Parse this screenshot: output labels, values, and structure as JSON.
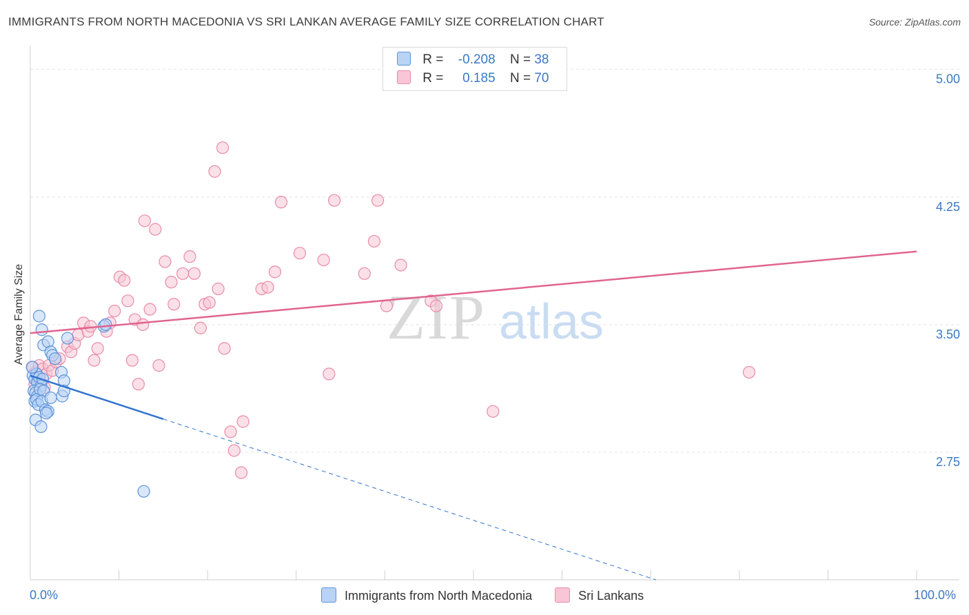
{
  "header": {
    "title": "IMMIGRANTS FROM NORTH MACEDONIA VS SRI LANKAN AVERAGE FAMILY SIZE CORRELATION CHART",
    "source": "Source: ZipAtlas.com"
  },
  "legend": {
    "r_label": "R =",
    "n_label": "N =",
    "rows": [
      {
        "r": "-0.208",
        "n": "38"
      },
      {
        "r": "0.185",
        "n": "70"
      }
    ]
  },
  "watermark": {
    "zip": "ZIP",
    "atlas": "atlas"
  },
  "colors": {
    "blue": "#5b93d8",
    "blue_fill": "#b9d3f5",
    "blue_line": "#3173cf",
    "pink": "#e98aa8",
    "pink_fill": "#f8c6d6",
    "pink_line": "#e0648f",
    "tick_text": "#3b78c4",
    "grid": "#e4e4e4"
  },
  "chart_data": {
    "type": "scatter",
    "title": "IMMIGRANTS FROM NORTH MACEDONIA VS SRI LANKAN AVERAGE FAMILY SIZE CORRELATION CHART",
    "xlabel": "",
    "ylabel": "Average Family Size",
    "xlim": [
      0,
      100
    ],
    "ylim": [
      2.0,
      5.1
    ],
    "yticks": [
      2.75,
      3.5,
      4.25,
      5.0
    ],
    "ytick_labels": [
      "2.75",
      "3.50",
      "4.25",
      "5.00"
    ],
    "xtick_labels": [
      "0.0%",
      "100.0%"
    ],
    "legend_position": "top-center",
    "series": [
      {
        "name": "Immigrants from North Macedonia",
        "color": "blue",
        "trend": {
          "x0": 0,
          "y0": 3.2,
          "x1": 100,
          "y1": 1.5,
          "solid_until": 15
        },
        "points": [
          [
            1.0,
            3.55
          ],
          [
            1.3,
            3.47
          ],
          [
            1.5,
            3.38
          ],
          [
            2.0,
            3.4
          ],
          [
            2.3,
            3.34
          ],
          [
            2.5,
            3.32
          ],
          [
            0.3,
            3.2
          ],
          [
            0.5,
            3.18
          ],
          [
            0.7,
            3.21
          ],
          [
            0.8,
            3.16
          ],
          [
            1.0,
            3.19
          ],
          [
            1.2,
            3.14
          ],
          [
            1.4,
            3.18
          ],
          [
            0.4,
            3.11
          ],
          [
            0.6,
            3.1
          ],
          [
            0.8,
            3.08
          ],
          [
            1.1,
            3.12
          ],
          [
            1.5,
            3.11
          ],
          [
            0.5,
            3.05
          ],
          [
            0.7,
            3.06
          ],
          [
            0.9,
            3.03
          ],
          [
            1.3,
            3.05
          ],
          [
            1.7,
            3.0
          ],
          [
            2.0,
            2.99
          ],
          [
            1.8,
            2.98
          ],
          [
            0.6,
            2.94
          ],
          [
            1.2,
            2.9
          ],
          [
            2.3,
            3.07
          ],
          [
            3.5,
            3.22
          ],
          [
            3.8,
            3.17
          ],
          [
            3.6,
            3.08
          ],
          [
            3.8,
            3.11
          ],
          [
            4.2,
            3.42
          ],
          [
            2.8,
            3.3
          ],
          [
            8.3,
            3.49
          ],
          [
            8.5,
            3.5
          ],
          [
            0.2,
            3.25
          ],
          [
            12.8,
            2.52
          ]
        ]
      },
      {
        "name": "Sri Lankans",
        "color": "pink",
        "trend": {
          "x0": 0,
          "y0": 3.45,
          "x1": 100,
          "y1": 3.93
        },
        "points": [
          [
            0.3,
            3.25
          ],
          [
            0.6,
            3.22
          ],
          [
            0.8,
            3.19
          ],
          [
            1.0,
            3.26
          ],
          [
            1.4,
            3.24
          ],
          [
            1.8,
            3.21
          ],
          [
            2.1,
            3.26
          ],
          [
            2.5,
            3.23
          ],
          [
            2.9,
            3.28
          ],
          [
            3.3,
            3.3
          ],
          [
            0.5,
            3.15
          ],
          [
            0.9,
            3.18
          ],
          [
            1.6,
            3.13
          ],
          [
            4.2,
            3.37
          ],
          [
            4.6,
            3.34
          ],
          [
            5.0,
            3.39
          ],
          [
            5.4,
            3.44
          ],
          [
            6.0,
            3.51
          ],
          [
            6.5,
            3.46
          ],
          [
            6.8,
            3.49
          ],
          [
            7.2,
            3.29
          ],
          [
            7.6,
            3.36
          ],
          [
            8.6,
            3.46
          ],
          [
            9.0,
            3.51
          ],
          [
            9.5,
            3.58
          ],
          [
            10.1,
            3.78
          ],
          [
            10.6,
            3.76
          ],
          [
            11.0,
            3.64
          ],
          [
            11.5,
            3.29
          ],
          [
            11.8,
            3.53
          ],
          [
            12.2,
            3.15
          ],
          [
            12.7,
            3.5
          ],
          [
            12.9,
            4.11
          ],
          [
            13.5,
            3.59
          ],
          [
            14.1,
            4.06
          ],
          [
            14.5,
            3.26
          ],
          [
            15.2,
            3.87
          ],
          [
            15.9,
            3.75
          ],
          [
            16.2,
            3.62
          ],
          [
            17.2,
            3.8
          ],
          [
            18.0,
            3.9
          ],
          [
            18.5,
            3.8
          ],
          [
            19.2,
            3.48
          ],
          [
            19.7,
            3.62
          ],
          [
            20.2,
            3.63
          ],
          [
            20.8,
            4.4
          ],
          [
            21.2,
            3.71
          ],
          [
            21.7,
            4.54
          ],
          [
            21.9,
            3.36
          ],
          [
            22.6,
            2.87
          ],
          [
            23.0,
            2.76
          ],
          [
            23.8,
            2.63
          ],
          [
            24.0,
            2.93
          ],
          [
            26.1,
            3.71
          ],
          [
            26.8,
            3.72
          ],
          [
            27.6,
            3.81
          ],
          [
            28.3,
            4.22
          ],
          [
            30.4,
            3.92
          ],
          [
            33.1,
            3.88
          ],
          [
            33.7,
            3.21
          ],
          [
            34.3,
            4.23
          ],
          [
            37.7,
            3.8
          ],
          [
            38.8,
            3.99
          ],
          [
            39.2,
            4.23
          ],
          [
            40.2,
            3.61
          ],
          [
            41.8,
            3.85
          ],
          [
            45.2,
            3.64
          ],
          [
            45.8,
            3.61
          ],
          [
            52.2,
            2.99
          ],
          [
            81.1,
            3.22
          ]
        ]
      }
    ]
  },
  "bottom_legend": [
    {
      "label": "Immigrants from North Macedonia"
    },
    {
      "label": "Sri Lankans"
    }
  ]
}
